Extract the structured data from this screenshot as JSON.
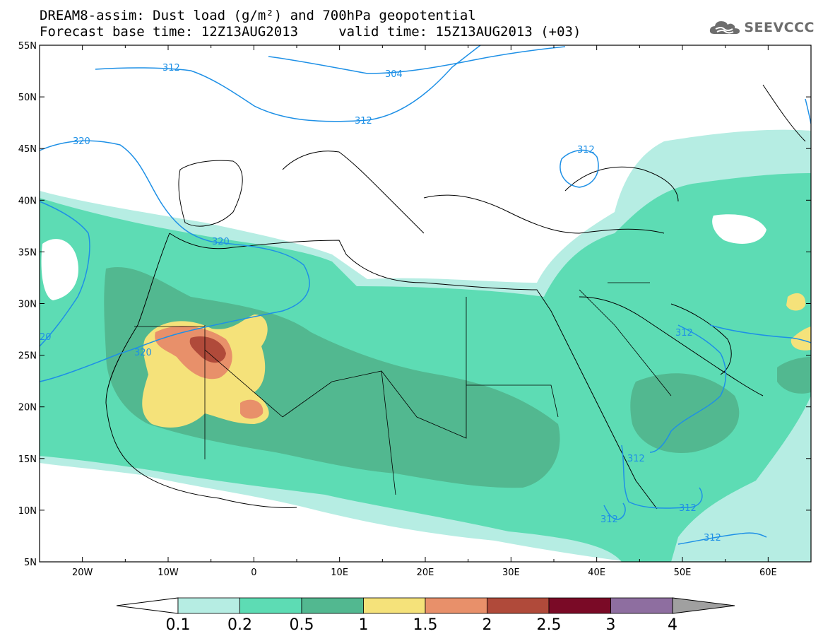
{
  "header": {
    "title_line1": "DREAM8-assim: Dust load (g/m²) and 700hPa geopotential",
    "title_line2": "Forecast base time: 12Z13AUG2013     valid time: 15Z13AUG2013 (+03)"
  },
  "logo": {
    "text": "SEEVCCC",
    "icon": "cloud-icon"
  },
  "map": {
    "lat_labels": [
      "55N",
      "50N",
      "45N",
      "40N",
      "35N",
      "30N",
      "25N",
      "20N",
      "15N",
      "10N",
      "5N"
    ],
    "lon_labels": [
      "20W",
      "10W",
      "0",
      "10E",
      "20E",
      "30E",
      "40E",
      "50E",
      "60E"
    ],
    "contour_labels": [
      "312",
      "304",
      "312",
      "320",
      "312",
      "320",
      "320",
      "20",
      "312",
      "312",
      "312",
      "312",
      "312"
    ],
    "colors": {
      "ocean": "#ffffff",
      "contour": "#1e90e6",
      "border": "#000000"
    }
  },
  "colorbar": {
    "labels": [
      "0.1",
      "0.2",
      "0.5",
      "1",
      "1.5",
      "2",
      "2.5",
      "3",
      "4"
    ],
    "colors": [
      "#b6ede3",
      "#5ddcb4",
      "#52b890",
      "#f5e27a",
      "#e8906a",
      "#b04a3a",
      "#7a0a26",
      "#8e6ea0"
    ],
    "over_color": "#a0a0a0",
    "under_color": "#ffffff"
  }
}
